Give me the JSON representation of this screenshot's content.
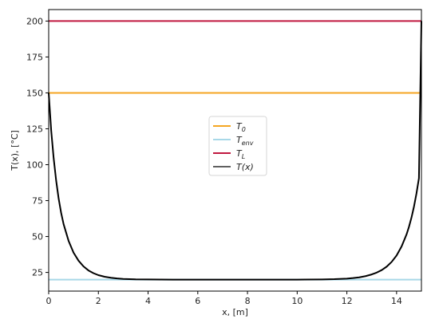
{
  "chart_data": {
    "type": "line",
    "xlabel": "x, [m]",
    "ylabel": "T(x), [°C]",
    "xlim": [
      0,
      15
    ],
    "ylim": [
      12,
      208
    ],
    "grid": false,
    "legend_position": "center",
    "x_ticks": [
      0,
      2,
      4,
      6,
      8,
      10,
      12,
      14
    ],
    "y_ticks": [
      25,
      50,
      75,
      100,
      125,
      150,
      175,
      200
    ],
    "x_tick_labels": [
      "0",
      "2",
      "4",
      "6",
      "8",
      "10",
      "12",
      "14"
    ],
    "y_tick_labels": [
      "25",
      "50",
      "75",
      "100",
      "125",
      "150",
      "175",
      "200"
    ],
    "hlines": [
      {
        "name": "T_0",
        "legend": "T",
        "sub": "0",
        "y": 150,
        "color": "#f5a623"
      },
      {
        "name": "T_env",
        "legend": "T",
        "sub": "env",
        "y": 20,
        "color": "#a8d8e8"
      },
      {
        "name": "T_L",
        "legend": "T",
        "sub": "L",
        "y": 200,
        "color": "#c0183f"
      }
    ],
    "series": [
      {
        "name": "T(x)",
        "color": "#000000",
        "x": [
          0,
          0.1,
          0.2,
          0.3,
          0.4,
          0.5,
          0.6,
          0.8,
          1.0,
          1.2,
          1.4,
          1.6,
          1.8,
          2.0,
          2.25,
          2.5,
          2.75,
          3.0,
          3.5,
          4.0,
          5.0,
          6.0,
          7.0,
          8.0,
          9.0,
          10.0,
          11.0,
          11.5,
          12.0,
          12.25,
          12.5,
          12.75,
          13.0,
          13.2,
          13.4,
          13.6,
          13.8,
          14.0,
          14.2,
          14.4,
          14.5,
          14.6,
          14.7,
          14.8,
          14.9,
          15.0
        ],
        "y": [
          150,
          124,
          104.5,
          89,
          76.5,
          66.5,
          58.6,
          47.0,
          38.8,
          33.2,
          29.2,
          26.4,
          24.5,
          23.1,
          22.0,
          21.3,
          20.8,
          20.5,
          20.2,
          20.1,
          20.0,
          20.0,
          20.0,
          20.0,
          20.0,
          20.0,
          20.1,
          20.3,
          20.7,
          21.1,
          21.6,
          22.4,
          23.6,
          24.9,
          26.6,
          29.0,
          32.3,
          36.8,
          43.0,
          51.4,
          56.8,
          63.2,
          70.8,
          79.9,
          90.6,
          200
        ]
      }
    ]
  }
}
